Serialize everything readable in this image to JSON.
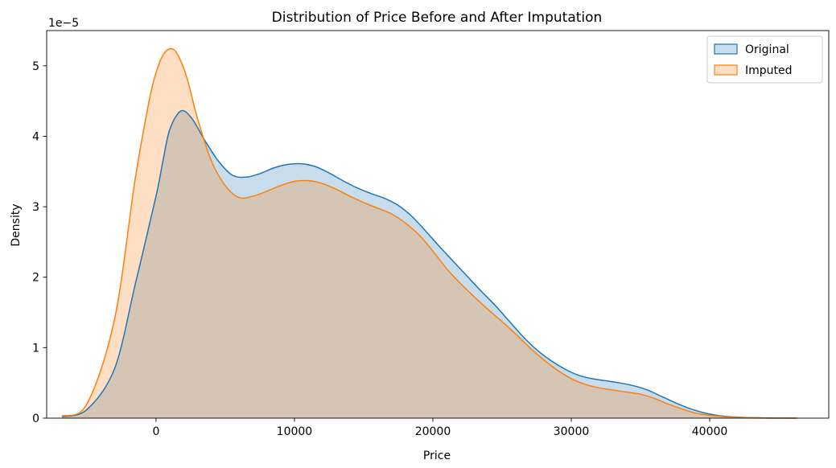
{
  "chart_data": {
    "type": "area",
    "title": "Distribution of Price Before and After Imputation",
    "xlabel": "Price",
    "ylabel": "Density",
    "y_offset_label": "1e−5",
    "xlim": [
      -7900,
      48600
    ],
    "ylim": [
      0,
      5.5
    ],
    "x_ticks": [
      0,
      10000,
      20000,
      30000,
      40000
    ],
    "x_tick_labels": [
      "0",
      "10000",
      "20000",
      "30000",
      "40000"
    ],
    "y_ticks": [
      0,
      1,
      2,
      3,
      4,
      5
    ],
    "y_tick_labels": [
      "0",
      "1",
      "2",
      "3",
      "4",
      "5"
    ],
    "grid": false,
    "legend_position": "top-right",
    "series": [
      {
        "name": "Original",
        "color": "#1f77b4",
        "x": [
          -6800,
          -5000,
          -3000,
          -1500,
          0,
          500,
          1000,
          1800,
          2600,
          3500,
          4500,
          5500,
          6500,
          7500,
          8500,
          9500,
          10500,
          11500,
          12500,
          13500,
          14500,
          15500,
          16500,
          17500,
          18500,
          19500,
          20500,
          21500,
          22500,
          23500,
          24500,
          25500,
          26500,
          27500,
          28500,
          29500,
          30500,
          31500,
          32500,
          33500,
          34500,
          35500,
          36500,
          37500,
          38500,
          39500,
          40500,
          41500,
          42500,
          43500,
          44500,
          45500,
          46300
        ],
        "values": [
          0.02,
          0.12,
          0.7,
          1.9,
          3.15,
          3.65,
          4.1,
          4.36,
          4.25,
          3.95,
          3.65,
          3.45,
          3.42,
          3.47,
          3.55,
          3.6,
          3.61,
          3.57,
          3.48,
          3.37,
          3.27,
          3.19,
          3.12,
          3.02,
          2.86,
          2.65,
          2.43,
          2.22,
          2.01,
          1.8,
          1.6,
          1.38,
          1.16,
          0.97,
          0.82,
          0.7,
          0.61,
          0.56,
          0.53,
          0.5,
          0.46,
          0.4,
          0.31,
          0.22,
          0.14,
          0.08,
          0.04,
          0.02,
          0.01,
          0.005,
          0.002,
          0.001,
          0.0
        ]
      },
      {
        "name": "Imputed",
        "color": "#ff7f0e",
        "x": [
          -6800,
          -5000,
          -3000,
          -1500,
          -500,
          0,
          500,
          1000,
          1500,
          2200,
          3000,
          4000,
          5000,
          6000,
          7000,
          8000,
          9000,
          10000,
          11000,
          12000,
          13000,
          14000,
          15000,
          16000,
          17000,
          18000,
          19000,
          20000,
          21000,
          22000,
          23000,
          24000,
          25000,
          26000,
          27000,
          28000,
          29000,
          30000,
          31000,
          32000,
          33000,
          34000,
          35000,
          36000,
          37000,
          38000,
          39000,
          40000,
          41000,
          42000,
          43000,
          44000,
          45000,
          46300
        ],
        "values": [
          0.03,
          0.2,
          1.4,
          3.4,
          4.5,
          4.9,
          5.15,
          5.24,
          5.18,
          4.85,
          4.25,
          3.65,
          3.3,
          3.13,
          3.15,
          3.22,
          3.3,
          3.36,
          3.37,
          3.33,
          3.25,
          3.15,
          3.06,
          2.98,
          2.9,
          2.77,
          2.6,
          2.37,
          2.12,
          1.91,
          1.72,
          1.54,
          1.37,
          1.19,
          1.0,
          0.83,
          0.68,
          0.56,
          0.48,
          0.43,
          0.4,
          0.37,
          0.34,
          0.28,
          0.2,
          0.13,
          0.07,
          0.04,
          0.02,
          0.01,
          0.005,
          0.002,
          0.001,
          0.0
        ]
      }
    ]
  }
}
